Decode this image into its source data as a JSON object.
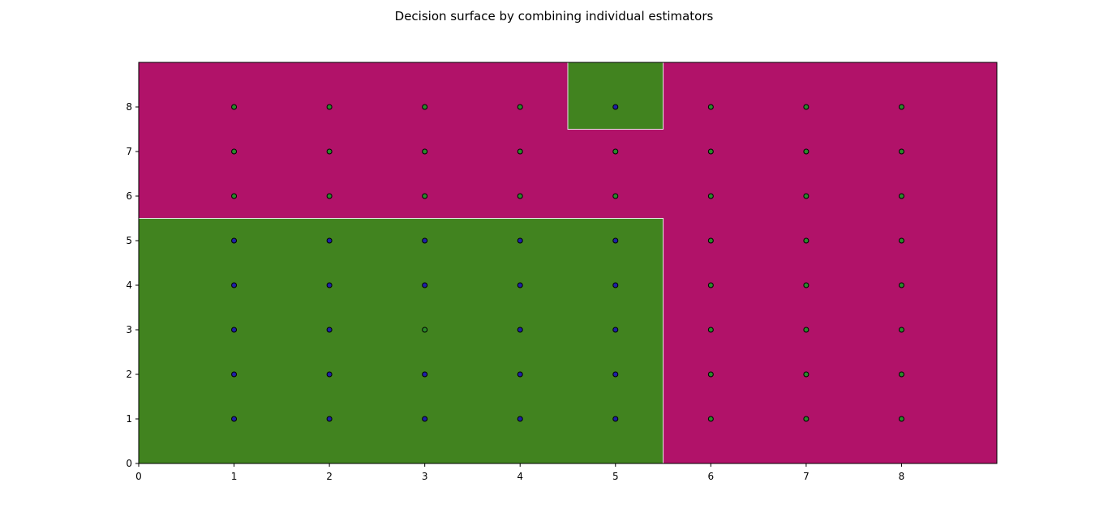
{
  "chart_data": {
    "type": "scatter",
    "title": "Decision surface by combining individual estimators",
    "xlabel": "",
    "ylabel": "",
    "xlim": [
      0,
      9
    ],
    "ylim": [
      0,
      9
    ],
    "x_ticks": [
      0,
      1,
      2,
      3,
      4,
      5,
      6,
      7,
      8
    ],
    "y_ticks": [
      0,
      1,
      2,
      3,
      4,
      5,
      6,
      7,
      8
    ],
    "grid": false,
    "region_colors": {
      "class_0": "#b11269",
      "class_1": "#41831f"
    },
    "regions": [
      {
        "class": "class_0",
        "x": [
          0,
          9
        ],
        "y": [
          0,
          9
        ]
      },
      {
        "class": "class_1",
        "x": [
          0,
          5.5
        ],
        "y": [
          0,
          5.5
        ]
      },
      {
        "class": "class_1",
        "x": [
          4.5,
          5.5
        ],
        "y": [
          7.5,
          9
        ]
      }
    ],
    "point_colors": {
      "blue": "#1f1fa8",
      "green": "#2a8a2a"
    },
    "points": [
      {
        "x": 1,
        "y": 1,
        "c": "blue"
      },
      {
        "x": 2,
        "y": 1,
        "c": "blue"
      },
      {
        "x": 3,
        "y": 1,
        "c": "blue"
      },
      {
        "x": 4,
        "y": 1,
        "c": "blue"
      },
      {
        "x": 5,
        "y": 1,
        "c": "blue"
      },
      {
        "x": 6,
        "y": 1,
        "c": "green"
      },
      {
        "x": 7,
        "y": 1,
        "c": "green"
      },
      {
        "x": 8,
        "y": 1,
        "c": "green"
      },
      {
        "x": 1,
        "y": 2,
        "c": "blue"
      },
      {
        "x": 2,
        "y": 2,
        "c": "blue"
      },
      {
        "x": 3,
        "y": 2,
        "c": "blue"
      },
      {
        "x": 4,
        "y": 2,
        "c": "blue"
      },
      {
        "x": 5,
        "y": 2,
        "c": "blue"
      },
      {
        "x": 6,
        "y": 2,
        "c": "green"
      },
      {
        "x": 7,
        "y": 2,
        "c": "green"
      },
      {
        "x": 8,
        "y": 2,
        "c": "green"
      },
      {
        "x": 1,
        "y": 3,
        "c": "blue"
      },
      {
        "x": 2,
        "y": 3,
        "c": "blue"
      },
      {
        "x": 3,
        "y": 3,
        "c": "green"
      },
      {
        "x": 4,
        "y": 3,
        "c": "blue"
      },
      {
        "x": 5,
        "y": 3,
        "c": "blue"
      },
      {
        "x": 6,
        "y": 3,
        "c": "green"
      },
      {
        "x": 7,
        "y": 3,
        "c": "green"
      },
      {
        "x": 8,
        "y": 3,
        "c": "green"
      },
      {
        "x": 1,
        "y": 4,
        "c": "blue"
      },
      {
        "x": 2,
        "y": 4,
        "c": "blue"
      },
      {
        "x": 3,
        "y": 4,
        "c": "blue"
      },
      {
        "x": 4,
        "y": 4,
        "c": "blue"
      },
      {
        "x": 5,
        "y": 4,
        "c": "blue"
      },
      {
        "x": 6,
        "y": 4,
        "c": "green"
      },
      {
        "x": 7,
        "y": 4,
        "c": "green"
      },
      {
        "x": 8,
        "y": 4,
        "c": "green"
      },
      {
        "x": 1,
        "y": 5,
        "c": "blue"
      },
      {
        "x": 2,
        "y": 5,
        "c": "blue"
      },
      {
        "x": 3,
        "y": 5,
        "c": "blue"
      },
      {
        "x": 4,
        "y": 5,
        "c": "blue"
      },
      {
        "x": 5,
        "y": 5,
        "c": "blue"
      },
      {
        "x": 6,
        "y": 5,
        "c": "green"
      },
      {
        "x": 7,
        "y": 5,
        "c": "green"
      },
      {
        "x": 8,
        "y": 5,
        "c": "green"
      },
      {
        "x": 1,
        "y": 6,
        "c": "green"
      },
      {
        "x": 2,
        "y": 6,
        "c": "green"
      },
      {
        "x": 3,
        "y": 6,
        "c": "green"
      },
      {
        "x": 4,
        "y": 6,
        "c": "green"
      },
      {
        "x": 5,
        "y": 6,
        "c": "green"
      },
      {
        "x": 6,
        "y": 6,
        "c": "green"
      },
      {
        "x": 7,
        "y": 6,
        "c": "green"
      },
      {
        "x": 8,
        "y": 6,
        "c": "green"
      },
      {
        "x": 1,
        "y": 7,
        "c": "green"
      },
      {
        "x": 2,
        "y": 7,
        "c": "green"
      },
      {
        "x": 3,
        "y": 7,
        "c": "green"
      },
      {
        "x": 4,
        "y": 7,
        "c": "green"
      },
      {
        "x": 5,
        "y": 7,
        "c": "green"
      },
      {
        "x": 6,
        "y": 7,
        "c": "green"
      },
      {
        "x": 7,
        "y": 7,
        "c": "green"
      },
      {
        "x": 8,
        "y": 7,
        "c": "green"
      },
      {
        "x": 1,
        "y": 8,
        "c": "green"
      },
      {
        "x": 2,
        "y": 8,
        "c": "green"
      },
      {
        "x": 3,
        "y": 8,
        "c": "green"
      },
      {
        "x": 4,
        "y": 8,
        "c": "green"
      },
      {
        "x": 5,
        "y": 8,
        "c": "blue"
      },
      {
        "x": 6,
        "y": 8,
        "c": "green"
      },
      {
        "x": 7,
        "y": 8,
        "c": "green"
      },
      {
        "x": 8,
        "y": 8,
        "c": "green"
      }
    ]
  }
}
